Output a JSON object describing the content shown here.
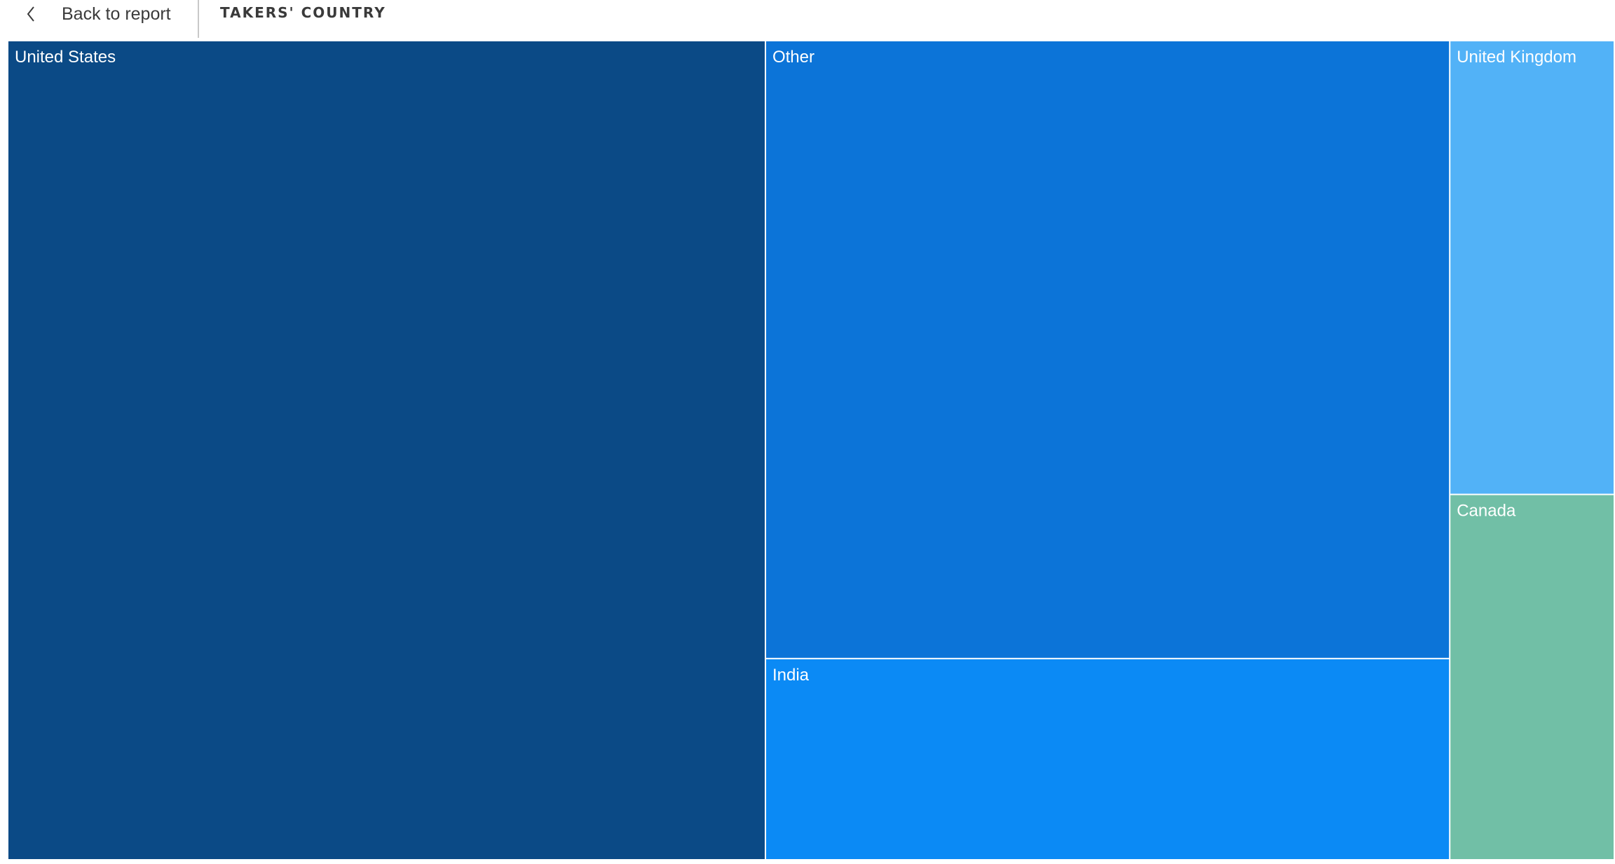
{
  "header": {
    "back_label": "Back to report",
    "back_icon": "chevron-left-icon",
    "title": "TAKERS' COUNTRY"
  },
  "colors": {
    "text_on_tile": "#ffffff",
    "tile_border": "#ffffff"
  },
  "chart_data": {
    "type": "treemap",
    "title": "",
    "items": [
      {
        "label": "United States",
        "value": 640,
        "color": "#0b4a86"
      },
      {
        "label": "Other",
        "value": 436,
        "color": "#0c74d8"
      },
      {
        "label": "India",
        "value": 142,
        "color": "#0b8af5"
      },
      {
        "label": "United Kingdom",
        "value": 77,
        "color": "#52b2f7"
      },
      {
        "label": "Canada",
        "value": 62,
        "color": "#71bfa6"
      }
    ]
  }
}
